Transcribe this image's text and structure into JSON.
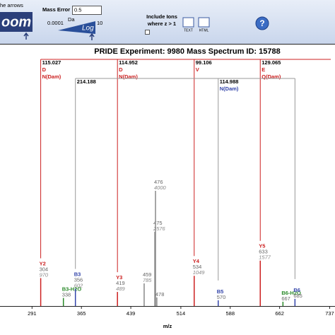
{
  "toolbar": {
    "logo_caption": "he arrows",
    "logo_word": "oom",
    "mass_error_label": "Mass Error",
    "mass_error_value": "0.5",
    "unit": "Da",
    "slider_min": "0.0001",
    "slider_label": "Log",
    "slider_max": "10",
    "include_ions_line1": "Include Ions",
    "include_ions_line2": "where z > 1",
    "text_button": "TEXT",
    "html_button": "HTML",
    "help": "?"
  },
  "chart_data": {
    "type": "spectrum",
    "title": "PRIDE Experiment: 9980 Mass Spectrum ID: 15788",
    "x_label": "m/z",
    "xlim": [
      243,
      745
    ],
    "xticks": [
      291,
      365,
      439,
      514,
      588,
      662,
      737
    ],
    "peaks": [
      {
        "label": "Y2",
        "mz": 304,
        "intensity": 970,
        "show_intensity": true,
        "color": "#cc2020"
      },
      {
        "label": "B3-H2O",
        "mz": 338,
        "intensity": 280,
        "show_intensity": false,
        "color": "#2a8a2a"
      },
      {
        "label": "B3",
        "mz": 356,
        "intensity": 602,
        "show_intensity": true,
        "color": "#3344aa"
      },
      {
        "label": "Y3",
        "mz": 419,
        "intensity": 489,
        "show_intensity": true,
        "color": "#cc2020"
      },
      {
        "mz": 459,
        "intensity": 785,
        "show_intensity": true
      },
      {
        "mz": 475,
        "intensity": 2576,
        "show_intensity": true
      },
      {
        "mz": 476,
        "intensity": 4000,
        "show_intensity": true
      },
      {
        "mz": 478,
        "intensity": 300,
        "show_intensity": false
      },
      {
        "label": "Y4",
        "mz": 534,
        "intensity": 1049,
        "show_intensity": true,
        "color": "#cc2020"
      },
      {
        "label": "B5",
        "mz": 570,
        "intensity": 200,
        "show_intensity": false,
        "color": "#3344aa"
      },
      {
        "label": "Y5",
        "mz": 633,
        "intensity": 1577,
        "show_intensity": true,
        "color": "#cc2020"
      },
      {
        "label": "B6-H2O",
        "mz": 667,
        "intensity": 150,
        "show_intensity": false,
        "color": "#2a8a2a"
      },
      {
        "label": "B6",
        "mz": 685,
        "intensity": 250,
        "show_intensity": false,
        "color": "#3344aa"
      }
    ],
    "ladders": [
      {
        "color": "#cc2020",
        "residue_color": "#cc2020",
        "steps": [
          {
            "peak": 0,
            "delta": 115.027,
            "residues": [
              "D",
              "N(Dam)"
            ]
          },
          {
            "peak": 3,
            "delta": 114.952,
            "residues": [
              "D",
              "N(Dam)"
            ]
          },
          {
            "peak": 8,
            "delta": 99.106,
            "residues": [
              "V"
            ]
          },
          {
            "peak": 10,
            "delta": 129.065,
            "residues": [
              "E",
              "Q(Dam)"
            ]
          }
        ]
      },
      {
        "color": "#999999",
        "residue_color": "#3344aa",
        "steps": [
          {
            "peak": 2,
            "delta": 214.188,
            "residues": []
          },
          {
            "peak": 9,
            "delta": 114.988,
            "residues": [
              "N(Dam)"
            ]
          },
          {
            "peak": 12
          }
        ]
      }
    ]
  }
}
